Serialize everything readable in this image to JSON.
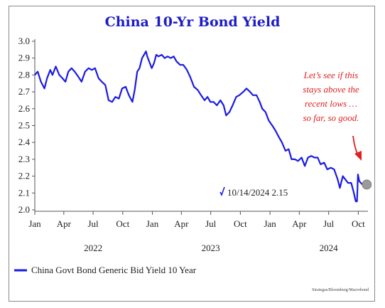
{
  "chart_data": {
    "type": "line",
    "title": "China 10-Yr Bond Yield",
    "ylim": [
      2.0,
      3.0
    ],
    "yticks": [
      "3.0",
      "2.9",
      "2.8",
      "2.7",
      "2.6",
      "2.5",
      "2.4",
      "2.3",
      "2.2",
      "2.1",
      "2.0"
    ],
    "xticks": [
      {
        "label": "Jan",
        "date": "2022-01-01"
      },
      {
        "label": "Apr",
        "date": "2022-04-01"
      },
      {
        "label": "Jul",
        "date": "2022-07-01"
      },
      {
        "label": "Oct",
        "date": "2022-10-01"
      },
      {
        "label": "Jan",
        "date": "2023-01-01"
      },
      {
        "label": "Apr",
        "date": "2023-04-01"
      },
      {
        "label": "Jul",
        "date": "2023-07-01"
      },
      {
        "label": "Oct",
        "date": "2023-10-01"
      },
      {
        "label": "Jan",
        "date": "2024-01-01"
      },
      {
        "label": "Apr",
        "date": "2024-04-01"
      },
      {
        "label": "Jul",
        "date": "2024-07-01"
      },
      {
        "label": "Oct",
        "date": "2024-10-01"
      }
    ],
    "years": [
      {
        "label": "2022",
        "date": "2022-07-01"
      },
      {
        "label": "2023",
        "date": "2023-07-01"
      },
      {
        "label": "2024",
        "date": "2024-07-01"
      }
    ],
    "xlim": [
      "2022-01-01",
      "2024-10-31"
    ],
    "series": [
      {
        "name": "China Govt Bond Generic Bid Yield 10 Year",
        "color": "#1a1ae6",
        "points": [
          [
            "2022-01-01",
            2.8
          ],
          [
            "2022-01-10",
            2.82
          ],
          [
            "2022-01-20",
            2.76
          ],
          [
            "2022-01-31",
            2.72
          ],
          [
            "2022-02-08",
            2.78
          ],
          [
            "2022-02-18",
            2.83
          ],
          [
            "2022-02-25",
            2.8
          ],
          [
            "2022-03-07",
            2.85
          ],
          [
            "2022-03-18",
            2.8
          ],
          [
            "2022-03-28",
            2.78
          ],
          [
            "2022-04-06",
            2.76
          ],
          [
            "2022-04-15",
            2.82
          ],
          [
            "2022-04-25",
            2.84
          ],
          [
            "2022-05-05",
            2.82
          ],
          [
            "2022-05-16",
            2.79
          ],
          [
            "2022-05-26",
            2.76
          ],
          [
            "2022-06-06",
            2.82
          ],
          [
            "2022-06-17",
            2.84
          ],
          [
            "2022-06-27",
            2.83
          ],
          [
            "2022-07-07",
            2.84
          ],
          [
            "2022-07-18",
            2.78
          ],
          [
            "2022-07-28",
            2.76
          ],
          [
            "2022-08-08",
            2.74
          ],
          [
            "2022-08-18",
            2.65
          ],
          [
            "2022-08-29",
            2.64
          ],
          [
            "2022-09-08",
            2.67
          ],
          [
            "2022-09-19",
            2.66
          ],
          [
            "2022-09-29",
            2.72
          ],
          [
            "2022-10-10",
            2.73
          ],
          [
            "2022-10-20",
            2.68
          ],
          [
            "2022-10-31",
            2.64
          ],
          [
            "2022-11-07",
            2.71
          ],
          [
            "2022-11-15",
            2.82
          ],
          [
            "2022-11-22",
            2.84
          ],
          [
            "2022-11-30",
            2.9
          ],
          [
            "2022-12-06",
            2.92
          ],
          [
            "2022-12-12",
            2.94
          ],
          [
            "2022-12-16",
            2.91
          ],
          [
            "2022-12-22",
            2.88
          ],
          [
            "2022-12-30",
            2.84
          ],
          [
            "2023-01-06",
            2.87
          ],
          [
            "2023-01-13",
            2.92
          ],
          [
            "2023-01-20",
            2.91
          ],
          [
            "2023-01-30",
            2.92
          ],
          [
            "2023-02-08",
            2.9
          ],
          [
            "2023-02-17",
            2.91
          ],
          [
            "2023-02-27",
            2.9
          ],
          [
            "2023-03-08",
            2.91
          ],
          [
            "2023-03-17",
            2.88
          ],
          [
            "2023-03-28",
            2.86
          ],
          [
            "2023-04-07",
            2.86
          ],
          [
            "2023-04-18",
            2.83
          ],
          [
            "2023-04-28",
            2.79
          ],
          [
            "2023-05-10",
            2.73
          ],
          [
            "2023-05-22",
            2.71
          ],
          [
            "2023-06-01",
            2.68
          ],
          [
            "2023-06-12",
            2.65
          ],
          [
            "2023-06-21",
            2.67
          ],
          [
            "2023-06-30",
            2.64
          ],
          [
            "2023-07-10",
            2.64
          ],
          [
            "2023-07-20",
            2.62
          ],
          [
            "2023-07-31",
            2.65
          ],
          [
            "2023-08-10",
            2.62
          ],
          [
            "2023-08-18",
            2.56
          ],
          [
            "2023-08-28",
            2.58
          ],
          [
            "2023-09-07",
            2.62
          ],
          [
            "2023-09-18",
            2.67
          ],
          [
            "2023-09-28",
            2.68
          ],
          [
            "2023-10-10",
            2.7
          ],
          [
            "2023-10-20",
            2.72
          ],
          [
            "2023-10-31",
            2.7
          ],
          [
            "2023-11-09",
            2.68
          ],
          [
            "2023-11-20",
            2.68
          ],
          [
            "2023-11-30",
            2.64
          ],
          [
            "2023-12-08",
            2.6
          ],
          [
            "2023-12-18",
            2.58
          ],
          [
            "2023-12-28",
            2.53
          ],
          [
            "2024-01-08",
            2.5
          ],
          [
            "2024-01-18",
            2.47
          ],
          [
            "2024-01-29",
            2.43
          ],
          [
            "2024-02-07",
            2.4
          ],
          [
            "2024-02-18",
            2.35
          ],
          [
            "2024-02-28",
            2.36
          ],
          [
            "2024-03-08",
            2.3
          ],
          [
            "2024-03-18",
            2.3
          ],
          [
            "2024-03-28",
            2.29
          ],
          [
            "2024-04-08",
            2.31
          ],
          [
            "2024-04-18",
            2.26
          ],
          [
            "2024-04-28",
            2.31
          ],
          [
            "2024-05-08",
            2.32
          ],
          [
            "2024-05-18",
            2.31
          ],
          [
            "2024-05-28",
            2.31
          ],
          [
            "2024-06-06",
            2.27
          ],
          [
            "2024-06-17",
            2.28
          ],
          [
            "2024-06-27",
            2.24
          ],
          [
            "2024-07-08",
            2.25
          ],
          [
            "2024-07-18",
            2.24
          ],
          [
            "2024-07-29",
            2.18
          ],
          [
            "2024-08-05",
            2.13
          ],
          [
            "2024-08-14",
            2.2
          ],
          [
            "2024-08-22",
            2.18
          ],
          [
            "2024-08-30",
            2.16
          ],
          [
            "2024-09-09",
            2.16
          ],
          [
            "2024-09-16",
            2.11
          ],
          [
            "2024-09-23",
            2.05
          ],
          [
            "2024-09-27",
            2.05
          ],
          [
            "2024-09-30",
            2.21
          ],
          [
            "2024-10-04",
            2.17
          ],
          [
            "2024-10-09",
            2.16
          ],
          [
            "2024-10-14",
            2.15
          ]
        ]
      }
    ],
    "last_marker": {
      "date": "2024-10-14",
      "value": 2.15,
      "color": "#9a9a9a"
    },
    "last_label": "10/14/2024 2.15",
    "annotation": {
      "lines": [
        "Let’s see if this",
        "stays above the",
        "recent lows …",
        "so far, so good."
      ],
      "color": "#e02020"
    },
    "legend_label": "China Govt Bond Generic Bid Yield 10 Year",
    "source": "Strategas/Bloomberg/Macrobond"
  }
}
